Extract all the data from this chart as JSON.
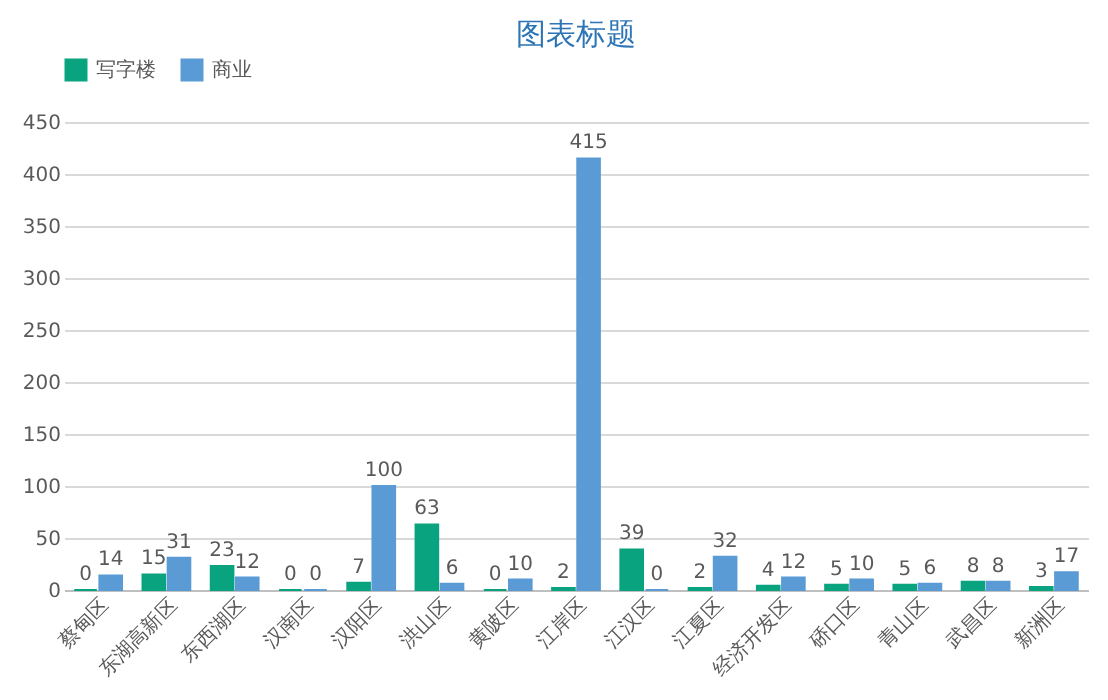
{
  "chart_data": {
    "type": "bar",
    "title": "图表标题",
    "categories": [
      "蔡甸区",
      "东湖高新区",
      "东西湖区",
      "汉南区",
      "汉阳区",
      "洪山区",
      "黄陂区",
      "江岸区",
      "江汉区",
      "江夏区",
      "经济开发区",
      "硚口区",
      "青山区",
      "武昌区",
      "新洲区"
    ],
    "series": [
      {
        "name": "写字楼",
        "color": "#0aa37f",
        "values": [
          0,
          15,
          23,
          0,
          7,
          63,
          0,
          2,
          39,
          2,
          4,
          5,
          5,
          8,
          3
        ]
      },
      {
        "name": "商业",
        "color": "#5b9bd5",
        "values": [
          14,
          31,
          12,
          0,
          100,
          6,
          10,
          415,
          0,
          32,
          12,
          10,
          6,
          8,
          17
        ]
      }
    ],
    "ylim": [
      0,
      450
    ],
    "yticks": [
      0,
      50,
      100,
      150,
      200,
      250,
      300,
      350,
      400,
      450
    ],
    "grid": "y",
    "legend": "top",
    "data_labels": true
  }
}
